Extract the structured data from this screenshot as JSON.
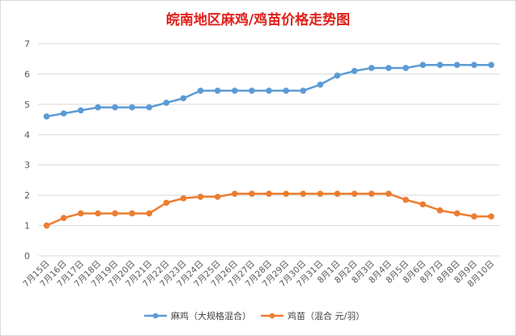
{
  "chart_data": {
    "type": "line",
    "title": "皖南地区麻鸡/鸡苗价格走势图",
    "xlabel": "",
    "ylabel": "",
    "ylim": [
      0,
      7
    ],
    "yticks": [
      0,
      1,
      2,
      3,
      4,
      5,
      6,
      7
    ],
    "grid": true,
    "legend_position": "bottom",
    "categories": [
      "7月15日",
      "7月16日",
      "7月17日",
      "7月18日",
      "7月19日",
      "7月20日",
      "7月21日",
      "7月22日",
      "7月23日",
      "7月24日",
      "7月25日",
      "7月26日",
      "7月27日",
      "7月28日",
      "7月29日",
      "7月30日",
      "7月31日",
      "8月1日",
      "8月2日",
      "8月3日",
      "8月4日",
      "8月5日",
      "8月6日",
      "8月7日",
      "8月8日",
      "8月9日",
      "8月10日"
    ],
    "series": [
      {
        "name": "麻鸡（大规格混合）",
        "color": "#5b9bd5",
        "values": [
          4.6,
          4.7,
          4.8,
          4.9,
          4.9,
          4.9,
          4.9,
          5.05,
          5.2,
          5.45,
          5.45,
          5.45,
          5.45,
          5.45,
          5.45,
          5.45,
          5.65,
          5.95,
          6.1,
          6.2,
          6.2,
          6.2,
          6.3,
          6.3,
          6.3,
          6.3,
          6.3
        ]
      },
      {
        "name": "鸡苗（混合 元/羽）",
        "color": "#ed7d31",
        "values": [
          1.0,
          1.25,
          1.4,
          1.4,
          1.4,
          1.4,
          1.4,
          1.75,
          1.9,
          1.95,
          1.95,
          2.05,
          2.05,
          2.05,
          2.05,
          2.05,
          2.05,
          2.05,
          2.05,
          2.05,
          2.05,
          1.85,
          1.7,
          1.5,
          1.4,
          1.3,
          1.3
        ]
      }
    ]
  }
}
